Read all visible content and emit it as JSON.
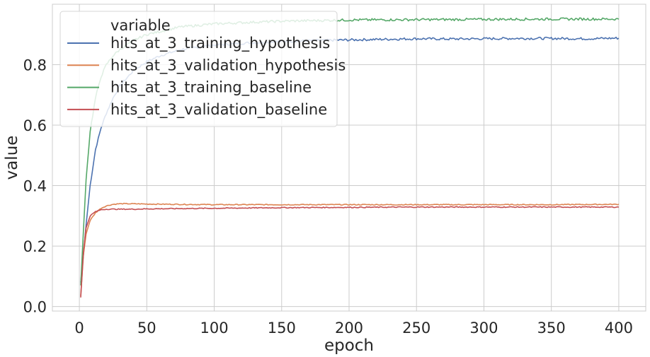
{
  "chart_data": {
    "type": "line",
    "xlabel": "epoch",
    "ylabel": "value",
    "xlim": [
      -20,
      420
    ],
    "ylim": [
      -0.015,
      1.0
    ],
    "xticks": [
      0,
      50,
      100,
      150,
      200,
      250,
      300,
      350,
      400
    ],
    "xtick_labels": [
      "0",
      "50",
      "100",
      "150",
      "200",
      "250",
      "300",
      "350",
      "400"
    ],
    "yticks": [
      0.0,
      0.2,
      0.4,
      0.6,
      0.8
    ],
    "ytick_labels": [
      "0.0",
      "0.2",
      "0.4",
      "0.6",
      "0.8"
    ],
    "grid": true,
    "legend": {
      "title": "variable",
      "position": "upper-left"
    },
    "series": [
      {
        "name": "hits_at_3_training_hypothesis",
        "color": "#4c72b0",
        "x": [
          1,
          3,
          5,
          8,
          12,
          16,
          20,
          25,
          30,
          40,
          50,
          60,
          75,
          100,
          125,
          150,
          175,
          200,
          225,
          250,
          275,
          300,
          325,
          350,
          375,
          400
        ],
        "y": [
          0.08,
          0.17,
          0.27,
          0.4,
          0.52,
          0.59,
          0.64,
          0.69,
          0.73,
          0.78,
          0.81,
          0.83,
          0.85,
          0.865,
          0.872,
          0.877,
          0.88,
          0.882,
          0.884,
          0.886,
          0.885,
          0.886,
          0.887,
          0.887,
          0.886,
          0.888
        ]
      },
      {
        "name": "hits_at_3_validation_hypothesis",
        "color": "#dd8452",
        "x": [
          1,
          3,
          5,
          8,
          12,
          16,
          20,
          25,
          30,
          40,
          50,
          75,
          100,
          150,
          200,
          250,
          300,
          350,
          400
        ],
        "y": [
          0.035,
          0.17,
          0.24,
          0.285,
          0.31,
          0.325,
          0.333,
          0.338,
          0.34,
          0.34,
          0.339,
          0.338,
          0.337,
          0.337,
          0.337,
          0.337,
          0.337,
          0.337,
          0.338
        ]
      },
      {
        "name": "hits_at_3_training_baseline",
        "color": "#55a868",
        "x": [
          1,
          3,
          5,
          8,
          12,
          16,
          20,
          25,
          30,
          40,
          50,
          60,
          75,
          100,
          125,
          150,
          175,
          200,
          250,
          300,
          350,
          400
        ],
        "y": [
          0.07,
          0.25,
          0.42,
          0.58,
          0.69,
          0.76,
          0.8,
          0.83,
          0.85,
          0.88,
          0.9,
          0.91,
          0.925,
          0.935,
          0.94,
          0.944,
          0.946,
          0.948,
          0.949,
          0.95,
          0.951,
          0.951
        ]
      },
      {
        "name": "hits_at_3_validation_baseline",
        "color": "#c44e52",
        "x": [
          1,
          3,
          5,
          8,
          12,
          16,
          20,
          25,
          30,
          40,
          50,
          75,
          100,
          150,
          200,
          250,
          300,
          350,
          400
        ],
        "y": [
          0.03,
          0.18,
          0.26,
          0.3,
          0.314,
          0.32,
          0.322,
          0.322,
          0.322,
          0.322,
          0.323,
          0.324,
          0.325,
          0.327,
          0.328,
          0.329,
          0.329,
          0.329,
          0.329
        ]
      }
    ]
  }
}
